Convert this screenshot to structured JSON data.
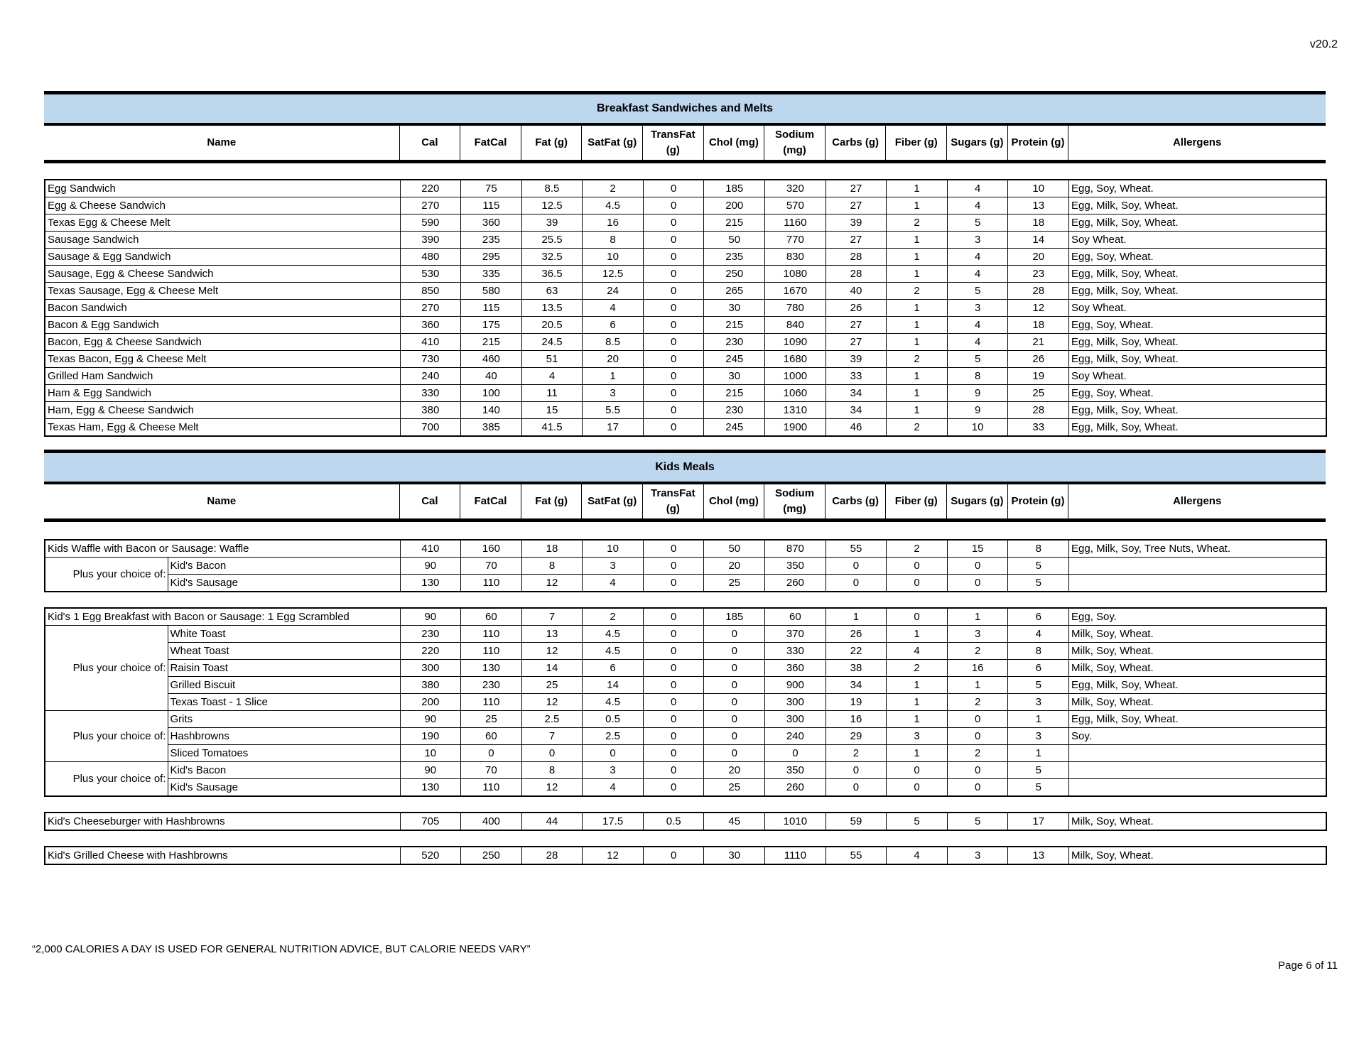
{
  "version": "v20.2",
  "footer_note": "“2,000 CALORIES A DAY IS USED FOR GENERAL NUTRITION ADVICE, BUT CALORIE NEEDS VARY”",
  "page_number": "Page 6 of 11",
  "columns": [
    "Name",
    "Cal",
    "FatCal",
    "Fat (g)",
    "SatFat (g)",
    "TransFat (g)",
    "Chol (mg)",
    "Sodium (mg)",
    "Carbs (g)",
    "Fiber (g)",
    "Sugars (g)",
    "Protein (g)",
    "Allergens"
  ],
  "band_color": "#bdd7ee",
  "breakfast": {
    "title": "Breakfast Sandwiches and Melts",
    "rows": [
      {
        "name": "Egg Sandwich",
        "values": [
          "220",
          "75",
          "8.5",
          "2",
          "0",
          "185",
          "320",
          "27",
          "1",
          "4",
          "10"
        ],
        "allergens": "Egg, Soy, Wheat."
      },
      {
        "name": "Egg & Cheese Sandwich",
        "values": [
          "270",
          "115",
          "12.5",
          "4.5",
          "0",
          "200",
          "570",
          "27",
          "1",
          "4",
          "13"
        ],
        "allergens": "Egg, Milk, Soy, Wheat."
      },
      {
        "name": "Texas Egg & Cheese Melt",
        "values": [
          "590",
          "360",
          "39",
          "16",
          "0",
          "215",
          "1160",
          "39",
          "2",
          "5",
          "18"
        ],
        "allergens": "Egg, Milk, Soy, Wheat."
      },
      {
        "name": "Sausage Sandwich",
        "values": [
          "390",
          "235",
          "25.5",
          "8",
          "0",
          "50",
          "770",
          "27",
          "1",
          "3",
          "14"
        ],
        "allergens": "Soy Wheat."
      },
      {
        "name": "Sausage & Egg Sandwich",
        "values": [
          "480",
          "295",
          "32.5",
          "10",
          "0",
          "235",
          "830",
          "28",
          "1",
          "4",
          "20"
        ],
        "allergens": "Egg, Soy, Wheat."
      },
      {
        "name": "Sausage, Egg & Cheese Sandwich",
        "values": [
          "530",
          "335",
          "36.5",
          "12.5",
          "0",
          "250",
          "1080",
          "28",
          "1",
          "4",
          "23"
        ],
        "allergens": "Egg, Milk, Soy, Wheat."
      },
      {
        "name": "Texas Sausage, Egg & Cheese Melt",
        "values": [
          "850",
          "580",
          "63",
          "24",
          "0",
          "265",
          "1670",
          "40",
          "2",
          "5",
          "28"
        ],
        "allergens": "Egg, Milk, Soy, Wheat."
      },
      {
        "name": "Bacon Sandwich",
        "values": [
          "270",
          "115",
          "13.5",
          "4",
          "0",
          "30",
          "780",
          "26",
          "1",
          "3",
          "12"
        ],
        "allergens": "Soy Wheat."
      },
      {
        "name": "Bacon & Egg Sandwich",
        "values": [
          "360",
          "175",
          "20.5",
          "6",
          "0",
          "215",
          "840",
          "27",
          "1",
          "4",
          "18"
        ],
        "allergens": "Egg, Soy, Wheat."
      },
      {
        "name": "Bacon, Egg & Cheese Sandwich",
        "values": [
          "410",
          "215",
          "24.5",
          "8.5",
          "0",
          "230",
          "1090",
          "27",
          "1",
          "4",
          "21"
        ],
        "allergens": "Egg, Milk, Soy, Wheat."
      },
      {
        "name": "Texas Bacon, Egg & Cheese Melt",
        "values": [
          "730",
          "460",
          "51",
          "20",
          "0",
          "245",
          "1680",
          "39",
          "2",
          "5",
          "26"
        ],
        "allergens": "Egg, Milk, Soy, Wheat."
      },
      {
        "name": "Grilled Ham Sandwich",
        "values": [
          "240",
          "40",
          "4",
          "1",
          "0",
          "30",
          "1000",
          "33",
          "1",
          "8",
          "19"
        ],
        "allergens": "Soy Wheat."
      },
      {
        "name": "Ham & Egg Sandwich",
        "values": [
          "330",
          "100",
          "11",
          "3",
          "0",
          "215",
          "1060",
          "34",
          "1",
          "9",
          "25"
        ],
        "allergens": "Egg, Soy, Wheat."
      },
      {
        "name": "Ham, Egg & Cheese Sandwich",
        "values": [
          "380",
          "140",
          "15",
          "5.5",
          "0",
          "230",
          "1310",
          "34",
          "1",
          "9",
          "28"
        ],
        "allergens": "Egg, Milk, Soy, Wheat."
      },
      {
        "name": "Texas Ham, Egg & Cheese Melt",
        "values": [
          "700",
          "385",
          "41.5",
          "17",
          "0",
          "245",
          "1900",
          "46",
          "2",
          "10",
          "33"
        ],
        "allergens": "Egg, Milk, Soy, Wheat."
      }
    ]
  },
  "kids": {
    "title": "Kids Meals",
    "groups": [
      {
        "main": {
          "name": "Kids Waffle with Bacon or Sausage: Waffle",
          "values": [
            "410",
            "160",
            "18",
            "10",
            "0",
            "50",
            "870",
            "55",
            "2",
            "15",
            "8"
          ],
          "allergens": "Egg, Milk, Soy, Tree Nuts, Wheat."
        },
        "choices": [
          {
            "label": "Plus your choice of:",
            "items": [
              {
                "name": "Kid's Bacon",
                "values": [
                  "90",
                  "70",
                  "8",
                  "3",
                  "0",
                  "20",
                  "350",
                  "0",
                  "0",
                  "0",
                  "5"
                ],
                "allergens": ""
              },
              {
                "name": "Kid's Sausage",
                "values": [
                  "130",
                  "110",
                  "12",
                  "4",
                  "0",
                  "25",
                  "260",
                  "0",
                  "0",
                  "0",
                  "5"
                ],
                "allergens": ""
              }
            ]
          }
        ]
      },
      {
        "main": {
          "name": "Kid's 1 Egg Breakfast with Bacon or Sausage: 1 Egg Scrambled",
          "values": [
            "90",
            "60",
            "7",
            "2",
            "0",
            "185",
            "60",
            "1",
            "0",
            "1",
            "6"
          ],
          "allergens": "Egg, Soy."
        },
        "choices": [
          {
            "label": "Plus your choice of:",
            "items": [
              {
                "name": "White Toast",
                "values": [
                  "230",
                  "110",
                  "13",
                  "4.5",
                  "0",
                  "0",
                  "370",
                  "26",
                  "1",
                  "3",
                  "4"
                ],
                "allergens": "Milk, Soy, Wheat."
              },
              {
                "name": "Wheat Toast",
                "values": [
                  "220",
                  "110",
                  "12",
                  "4.5",
                  "0",
                  "0",
                  "330",
                  "22",
                  "4",
                  "2",
                  "8"
                ],
                "allergens": "Milk, Soy, Wheat."
              },
              {
                "name": "Raisin Toast",
                "values": [
                  "300",
                  "130",
                  "14",
                  "6",
                  "0",
                  "0",
                  "360",
                  "38",
                  "2",
                  "16",
                  "6"
                ],
                "allergens": "Milk, Soy, Wheat."
              },
              {
                "name": "Grilled Biscuit",
                "values": [
                  "380",
                  "230",
                  "25",
                  "14",
                  "0",
                  "0",
                  "900",
                  "34",
                  "1",
                  "1",
                  "5"
                ],
                "allergens": "Egg, Milk, Soy, Wheat."
              },
              {
                "name": "Texas Toast - 1 Slice",
                "values": [
                  "200",
                  "110",
                  "12",
                  "4.5",
                  "0",
                  "0",
                  "300",
                  "19",
                  "1",
                  "2",
                  "3"
                ],
                "allergens": "Milk, Soy, Wheat."
              }
            ]
          },
          {
            "label": "Plus your choice of:",
            "items": [
              {
                "name": "Grits",
                "values": [
                  "90",
                  "25",
                  "2.5",
                  "0.5",
                  "0",
                  "0",
                  "300",
                  "16",
                  "1",
                  "0",
                  "1"
                ],
                "allergens": "Egg, Milk, Soy, Wheat."
              },
              {
                "name": "Hashbrowns",
                "values": [
                  "190",
                  "60",
                  "7",
                  "2.5",
                  "0",
                  "0",
                  "240",
                  "29",
                  "3",
                  "0",
                  "3"
                ],
                "allergens": "Soy."
              },
              {
                "name": "Sliced Tomatoes",
                "values": [
                  "10",
                  "0",
                  "0",
                  "0",
                  "0",
                  "0",
                  "0",
                  "2",
                  "1",
                  "2",
                  "1"
                ],
                "allergens": ""
              }
            ]
          },
          {
            "label": "Plus your choice of:",
            "items": [
              {
                "name": "Kid's Bacon",
                "values": [
                  "90",
                  "70",
                  "8",
                  "3",
                  "0",
                  "20",
                  "350",
                  "0",
                  "0",
                  "0",
                  "5"
                ],
                "allergens": ""
              },
              {
                "name": "Kid's Sausage",
                "values": [
                  "130",
                  "110",
                  "12",
                  "4",
                  "0",
                  "25",
                  "260",
                  "0",
                  "0",
                  "0",
                  "5"
                ],
                "allergens": ""
              }
            ]
          }
        ]
      },
      {
        "main": {
          "name": "Kid's Cheeseburger with Hashbrowns",
          "values": [
            "705",
            "400",
            "44",
            "17.5",
            "0.5",
            "45",
            "1010",
            "59",
            "5",
            "5",
            "17"
          ],
          "allergens": "Milk, Soy, Wheat."
        },
        "choices": []
      },
      {
        "main": {
          "name": "Kid's Grilled Cheese with Hashbrowns",
          "values": [
            "520",
            "250",
            "28",
            "12",
            "0",
            "30",
            "1110",
            "55",
            "4",
            "3",
            "13"
          ],
          "allergens": "Milk, Soy, Wheat."
        },
        "choices": []
      }
    ]
  }
}
